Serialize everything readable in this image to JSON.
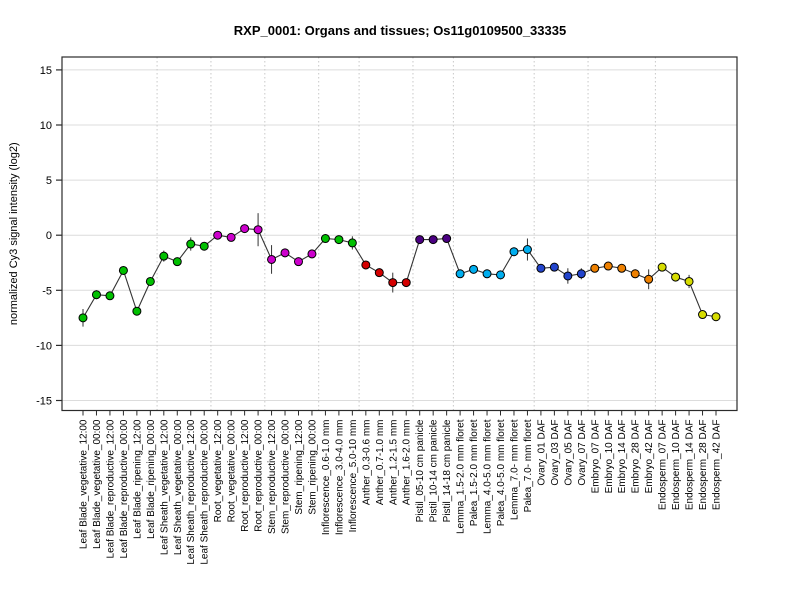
{
  "header": {
    "title": "RXP_0001: Organs and tissues; Os11g0109500_33335"
  },
  "chart_data": {
    "type": "scatter",
    "title": "RXP_0001: Organs and tissues; Os11g0109500_33335",
    "xlabel": "",
    "ylabel": "normalized Cy3 signal intensity (log2)",
    "ylim": [
      -16,
      16
    ],
    "yticks": [
      -15,
      -10,
      -5,
      0,
      5,
      10,
      15
    ],
    "grid": {
      "horizontal": "solid light gray at every y tick",
      "vertical": "dotted light gray at organ-group boundaries"
    },
    "legend": "none",
    "line_color": "#333333",
    "marker": {
      "shape": "circle",
      "outline": "#000000",
      "radius_px": 4
    },
    "palette": {
      "Leaf Blade": "#00C000",
      "Leaf Sheath": "#00C000",
      "Root": "#CC00CC",
      "Stem": "#CC00CC",
      "Inflorescence": "#00C000",
      "Anther": "#D40000",
      "Pistil": "#4B0082",
      "Lemma": "#00AEEF",
      "Palea": "#00AEEF",
      "Ovary": "#2244CC",
      "Embryo": "#EE8000",
      "Endosperm": "#D6DC00"
    },
    "group_boundaries_after_index": [
      5,
      9,
      13,
      17,
      20,
      24,
      27,
      33,
      37,
      42
    ],
    "points": [
      {
        "label": "Leaf Blade_vegetative_12:00",
        "organ": "Leaf Blade",
        "value": -7.5,
        "err": 0.8
      },
      {
        "label": "Leaf Blade_vegetative_00:00",
        "organ": "Leaf Blade",
        "value": -5.4,
        "err": 0.4
      },
      {
        "label": "Leaf Blade_reproductive_12:00",
        "organ": "Leaf Blade",
        "value": -5.5,
        "err": 0.3
      },
      {
        "label": "Leaf Blade_reproductive_00:00",
        "organ": "Leaf Blade",
        "value": -3.2,
        "err": 0.3
      },
      {
        "label": "Leaf Blade_ripening_12:00",
        "organ": "Leaf Blade",
        "value": -6.9,
        "err": 0.2
      },
      {
        "label": "Leaf Blade_ripening_00:00",
        "organ": "Leaf Blade",
        "value": -4.2,
        "err": 0.3
      },
      {
        "label": "Leaf Sheath_vegetative_12:00",
        "organ": "Leaf Sheath",
        "value": -1.9,
        "err": 0.5
      },
      {
        "label": "Leaf Sheath_vegetative_00:00",
        "organ": "Leaf Sheath",
        "value": -2.4,
        "err": 0.2
      },
      {
        "label": "Leaf Sheath_reproductive_12:00",
        "organ": "Leaf Sheath",
        "value": -0.8,
        "err": 0.6
      },
      {
        "label": "Leaf Sheath_reproductive_00:00",
        "organ": "Leaf Sheath",
        "value": -1.0,
        "err": 0.3
      },
      {
        "label": "Root_vegetative_12:00",
        "organ": "Root",
        "value": 0.0,
        "err": 0.2
      },
      {
        "label": "Root_vegetative_00:00",
        "organ": "Root",
        "value": -0.2,
        "err": 0.3
      },
      {
        "label": "Root_reproductive_12:00",
        "organ": "Root",
        "value": 0.6,
        "err": 0.3
      },
      {
        "label": "Root_reproductive_00:00",
        "organ": "Root",
        "value": 0.5,
        "err": 1.5
      },
      {
        "label": "Stem_reproductive_12:00",
        "organ": "Stem",
        "value": -2.2,
        "err": 1.3
      },
      {
        "label": "Stem_reproductive_00:00",
        "organ": "Stem",
        "value": -1.6,
        "err": 0.4
      },
      {
        "label": "Stem_ripening_12:00",
        "organ": "Stem",
        "value": -2.4,
        "err": 0.3
      },
      {
        "label": "Stem_ripening_00:00",
        "organ": "Stem",
        "value": -1.7,
        "err": 0.4
      },
      {
        "label": "Inflorescence_0.6-1.0 mm",
        "organ": "Inflorescence",
        "value": -0.3,
        "err": 0.2
      },
      {
        "label": "Inflorescence_3.0-4.0 mm",
        "organ": "Inflorescence",
        "value": -0.4,
        "err": 0.3
      },
      {
        "label": "Inflorescence_5.0-10 mm",
        "organ": "Inflorescence",
        "value": -0.7,
        "err": 0.6
      },
      {
        "label": "Anther_0.3-0.6 mm",
        "organ": "Anther",
        "value": -2.7,
        "err": 0.3
      },
      {
        "label": "Anther_0.7-1.0 mm",
        "organ": "Anther",
        "value": -3.4,
        "err": 0.3
      },
      {
        "label": "Anther_1.2-1.5 mm",
        "organ": "Anther",
        "value": -4.3,
        "err": 0.9
      },
      {
        "label": "Anther_1.6-2.0 mm",
        "organ": "Anther",
        "value": -4.3,
        "err": 0.3
      },
      {
        "label": "Pistil_05-10 cm panicle",
        "organ": "Pistil",
        "value": -0.4,
        "err": 0.2
      },
      {
        "label": "Pistil_10-14 cm panicle",
        "organ": "Pistil",
        "value": -0.4,
        "err": 0.3
      },
      {
        "label": "Pistil_14-18 cm panicle",
        "organ": "Pistil",
        "value": -0.3,
        "err": 0.2
      },
      {
        "label": "Lemma_1.5-2.0 mm floret",
        "organ": "Lemma",
        "value": -3.5,
        "err": 0.3
      },
      {
        "label": "Palea_1.5-2.0 mm floret",
        "organ": "Palea",
        "value": -3.1,
        "err": 0.3
      },
      {
        "label": "Lemma_4.0-5.0 mm floret",
        "organ": "Lemma",
        "value": -3.5,
        "err": 0.4
      },
      {
        "label": "Palea_4.0-5.0 mm floret",
        "organ": "Palea",
        "value": -3.6,
        "err": 0.4
      },
      {
        "label": "Lemma_7.0- mm floret",
        "organ": "Lemma",
        "value": -1.5,
        "err": 0.4
      },
      {
        "label": "Palea_7.0- mm floret",
        "organ": "Palea",
        "value": -1.3,
        "err": 1.0
      },
      {
        "label": "Ovary_01 DAF",
        "organ": "Ovary",
        "value": -3.0,
        "err": 0.3
      },
      {
        "label": "Ovary_03 DAF",
        "organ": "Ovary",
        "value": -2.9,
        "err": 0.3
      },
      {
        "label": "Ovary_05 DAF",
        "organ": "Ovary",
        "value": -3.7,
        "err": 0.7
      },
      {
        "label": "Ovary_07 DAF",
        "organ": "Ovary",
        "value": -3.5,
        "err": 0.5
      },
      {
        "label": "Embryo_07 DAF",
        "organ": "Embryo",
        "value": -3.0,
        "err": 0.3
      },
      {
        "label": "Embryo_10 DAF",
        "organ": "Embryo",
        "value": -2.8,
        "err": 0.3
      },
      {
        "label": "Embryo_14 DAF",
        "organ": "Embryo",
        "value": -3.0,
        "err": 0.3
      },
      {
        "label": "Embryo_28 DAF",
        "organ": "Embryo",
        "value": -3.5,
        "err": 0.4
      },
      {
        "label": "Embryo_42 DAF",
        "organ": "Embryo",
        "value": -4.0,
        "err": 0.9
      },
      {
        "label": "Endosperm_07 DAF",
        "organ": "Endosperm",
        "value": -2.9,
        "err": 0.3
      },
      {
        "label": "Endosperm_10 DAF",
        "organ": "Endosperm",
        "value": -3.8,
        "err": 0.4
      },
      {
        "label": "Endosperm_14 DAF",
        "organ": "Endosperm",
        "value": -4.2,
        "err": 0.6
      },
      {
        "label": "Endosperm_28 DAF",
        "organ": "Endosperm",
        "value": -7.2,
        "err": 0.3
      },
      {
        "label": "Endosperm_42 DAF",
        "organ": "Endosperm",
        "value": -7.4,
        "err": 0.3
      }
    ]
  }
}
